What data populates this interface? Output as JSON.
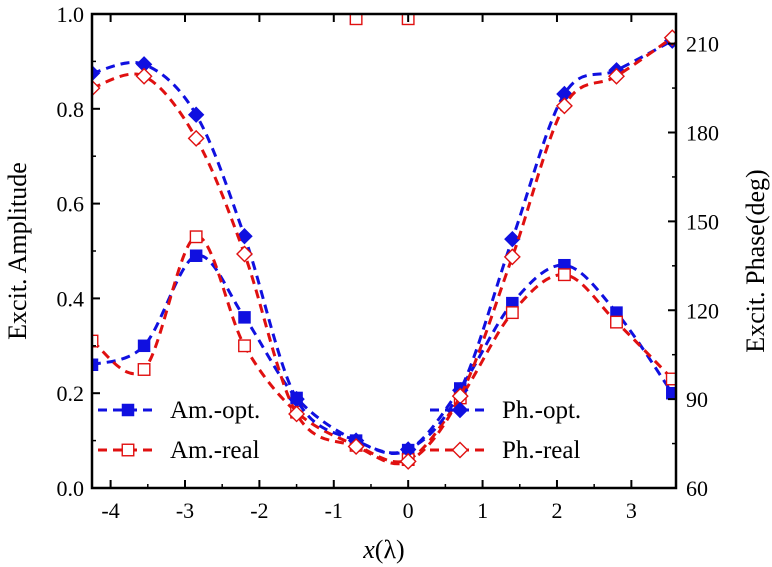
{
  "chart_data": {
    "type": "line",
    "xlabel": "x(λ)",
    "xlabel_var": "x",
    "xlabel_unit": "(λ)",
    "ylabel_left": "Excit. Amplitude",
    "ylabel_right": "Excit. Phase(deg)",
    "xlim": [
      -4.25,
      3.6
    ],
    "ylim_left": [
      0.0,
      1.0
    ],
    "ylim_right": [
      60,
      220
    ],
    "x_ticks": [
      -4,
      -3,
      -2,
      -1,
      0,
      1,
      2,
      3
    ],
    "x_tick_labels": [
      "-4",
      "-3",
      "-2",
      "-1",
      "0",
      "1",
      "2",
      "3"
    ],
    "y_left_ticks": [
      0.0,
      0.2,
      0.4,
      0.6,
      0.8,
      1.0
    ],
    "y_left_tick_labels": [
      "0.0",
      "0.2",
      "0.4",
      "0.6",
      "0.8",
      "1.0"
    ],
    "y_right_ticks": [
      60,
      90,
      120,
      150,
      180,
      210
    ],
    "y_right_tick_labels": [
      "60",
      "90",
      "120",
      "150",
      "180",
      "210"
    ],
    "grid": false,
    "series": [
      {
        "name": "Am.-opt.",
        "axis": "left",
        "color": "#1010e0",
        "marker": "square-filled",
        "x": [
          -4.25,
          -3.55,
          -2.85,
          -2.2,
          -1.5,
          -0.7,
          0.0,
          0.7,
          1.4,
          2.1,
          2.8,
          3.55
        ],
        "y": [
          0.26,
          0.3,
          0.49,
          0.36,
          0.19,
          0.1,
          0.08,
          0.21,
          0.39,
          0.47,
          0.37,
          0.2
        ]
      },
      {
        "name": "Am.-real",
        "axis": "left",
        "color": "#e01010",
        "marker": "square-open",
        "x": [
          -4.25,
          -3.55,
          -2.85,
          -2.2,
          -1.5,
          -0.7,
          0.0,
          0.7,
          1.4,
          2.1,
          2.8,
          3.55
        ],
        "y": [
          0.31,
          0.25,
          0.53,
          0.3,
          0.16,
          0.09,
          0.06,
          0.19,
          0.37,
          0.45,
          0.35,
          0.23
        ]
      },
      {
        "name": "Ph.-opt.",
        "axis": "right",
        "color": "#1010e0",
        "marker": "diamond-filled",
        "x": [
          -4.25,
          -3.55,
          -2.85,
          -2.2,
          -1.5,
          -0.7,
          0.0,
          0.7,
          1.4,
          2.1,
          2.8,
          3.55
        ],
        "y": [
          200,
          203,
          186,
          145,
          90,
          76,
          73,
          93,
          144,
          193,
          201,
          211
        ]
      },
      {
        "name": "Ph.-real",
        "axis": "right",
        "color": "#e01010",
        "marker": "diamond-open",
        "x": [
          -4.25,
          -3.55,
          -2.85,
          -2.2,
          -1.5,
          -0.7,
          0.0,
          0.7,
          1.4,
          2.1,
          2.8,
          3.55
        ],
        "y": [
          195,
          199,
          178,
          139,
          85,
          74,
          69,
          91,
          138,
          189,
          199,
          212
        ]
      },
      {
        "name": "Am.-opt. peak",
        "axis": "left",
        "color": "#1010e0",
        "marker": "square-filled",
        "x": [
          -0.7,
          0.0
        ],
        "y": [
          0.99,
          0.99
        ]
      },
      {
        "name": "Am.-real peak",
        "axis": "left",
        "color": "#e01010",
        "marker": "square-open",
        "x": [
          -0.7,
          0.0
        ],
        "y": [
          0.99,
          0.99
        ]
      }
    ],
    "legend": {
      "left_entries": [
        "Am.-opt.",
        "Am.-real"
      ],
      "right_entries": [
        "Ph.-opt.",
        "Ph.-real"
      ]
    }
  }
}
